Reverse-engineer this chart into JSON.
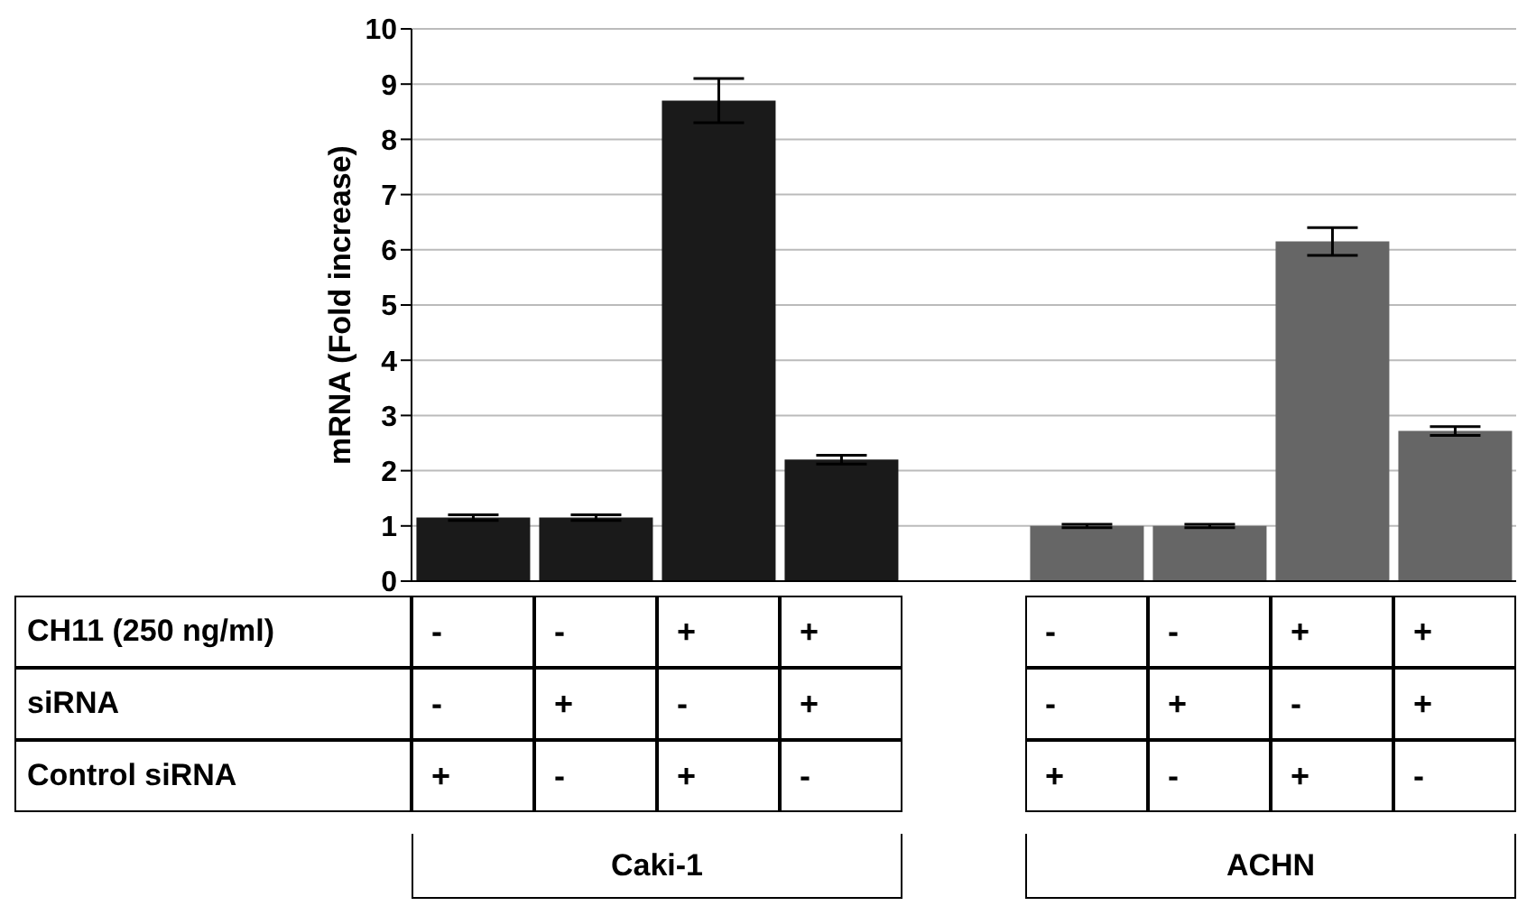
{
  "chart_data": {
    "type": "bar",
    "ylabel": "mRNA (Fold increase)",
    "categories": [
      null,
      null,
      null,
      null,
      null,
      null,
      null,
      null,
      null
    ],
    "values": [
      1.15,
      1.15,
      8.7,
      2.2,
      null,
      1.0,
      1.0,
      6.15,
      2.72
    ],
    "errors": [
      0.05,
      0.05,
      0.4,
      0.08,
      null,
      0.03,
      0.03,
      0.25,
      0.08
    ],
    "colors": [
      "#1a1a1a",
      "#1a1a1a",
      "#1a1a1a",
      "#1a1a1a",
      "#1a1a1a",
      "#666666",
      "#666666",
      "#666666",
      "#666666"
    ],
    "ylim": [
      0,
      10
    ],
    "yticks": [
      0,
      1,
      2,
      3,
      4,
      5,
      6,
      7,
      8,
      9,
      10
    ],
    "grid": "y",
    "annotations": [
      "CH11 (250 ng/ml)",
      "-",
      "-",
      "+",
      "+",
      "-",
      "-",
      "+",
      "+",
      "siRNA",
      "-",
      "+",
      "-",
      "+",
      "-",
      "+",
      "-",
      "+",
      "Control siRNA",
      "+",
      "-",
      "+",
      "-",
      "+",
      "-",
      "+",
      "-",
      "Caki-1",
      "ACHN"
    ]
  }
}
